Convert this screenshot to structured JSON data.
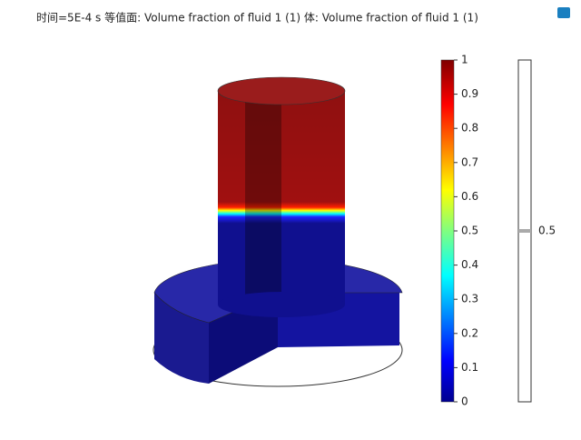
{
  "title": "时间=5E-4 s   等值面: Volume fraction of fluid 1 (1)  体: Volume fraction of fluid 1 (1)",
  "colorbar": {
    "ticks": [
      0,
      0.1,
      0.2,
      0.3,
      0.4,
      0.5,
      0.6,
      0.7,
      0.8,
      0.9,
      1
    ],
    "lim": [
      0,
      1
    ]
  },
  "isosurface_legend": {
    "value": 0.5
  }
}
